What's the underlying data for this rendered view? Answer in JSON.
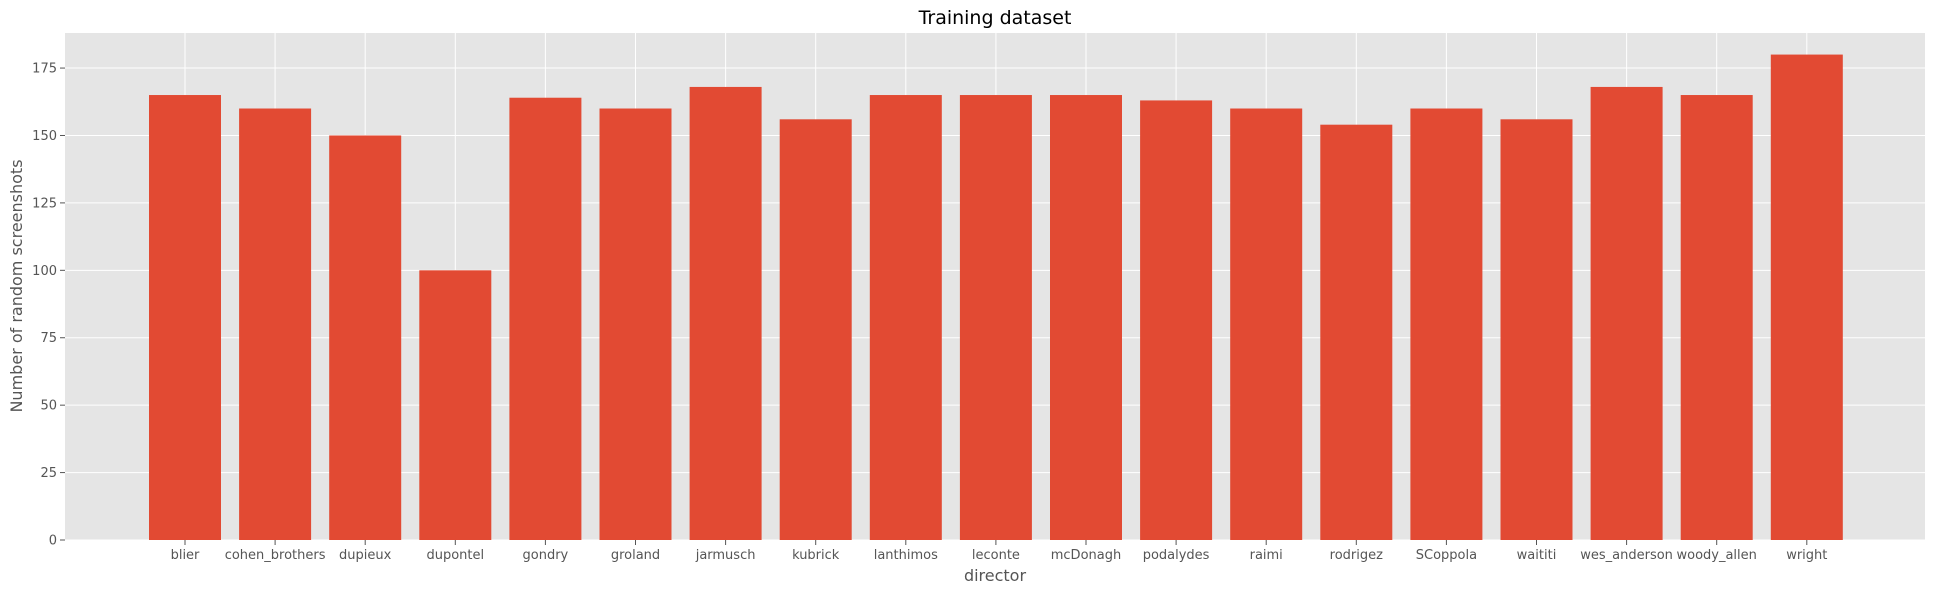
{
  "chart_data": {
    "type": "bar",
    "title": "Training dataset",
    "xlabel": "director",
    "ylabel": "Number of random screenshots",
    "categories": [
      "blier",
      "cohen_brothers",
      "dupieux",
      "dupontel",
      "gondry",
      "groland",
      "jarmusch",
      "kubrick",
      "lanthimos",
      "leconte",
      "mcDonagh",
      "podalydes",
      "raimi",
      "rodrigez",
      "SCoppola",
      "waititi",
      "wes_anderson",
      "woody_allen",
      "wright"
    ],
    "values": [
      165,
      160,
      150,
      100,
      164,
      160,
      168,
      156,
      165,
      165,
      165,
      163,
      160,
      154,
      160,
      156,
      168,
      165,
      180
    ],
    "ylim": [
      0,
      188
    ],
    "yticks": [
      0,
      25,
      50,
      75,
      100,
      125,
      150,
      175
    ],
    "grid": true,
    "colors": {
      "bar": "#E24A33",
      "plot_bg": "#E5E5E5",
      "grid": "#FFFFFF"
    }
  }
}
